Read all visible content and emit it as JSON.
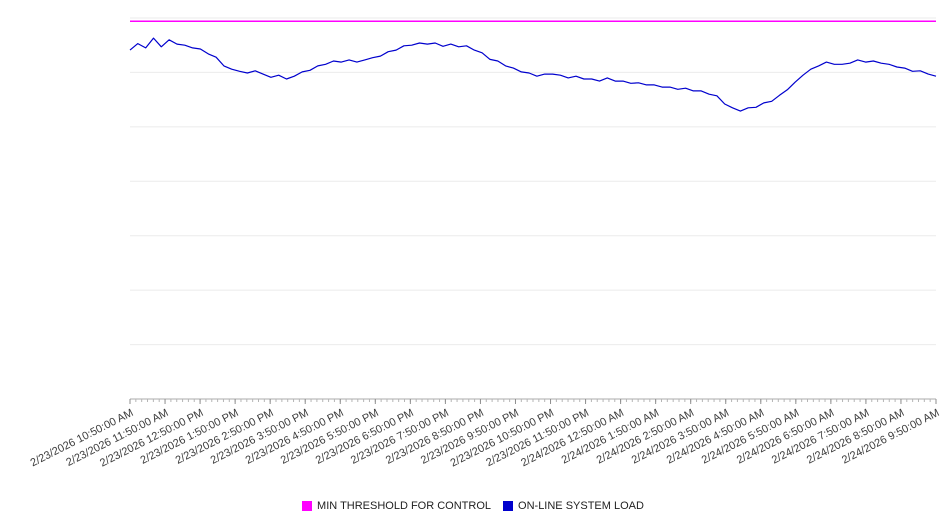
{
  "chart_data": {
    "type": "line",
    "title": "",
    "xlabel": "",
    "ylabel": "",
    "ylim": [
      0,
      7
    ],
    "grid_divisions": 7,
    "grid": true,
    "legend_position": "bottom",
    "minor_ticks_per_interval": 6,
    "x_labels": [
      "2/23/2026 10:50:00 AM",
      "2/23/2026 11:50:00 AM",
      "2/23/2026 12:50:00 PM",
      "2/23/2026 1:50:00 PM",
      "2/23/2026 2:50:00 PM",
      "2/23/2026 3:50:00 PM",
      "2/23/2026 4:50:00 PM",
      "2/23/2026 5:50:00 PM",
      "2/23/2026 6:50:00 PM",
      "2/23/2026 7:50:00 PM",
      "2/23/2026 8:50:00 PM",
      "2/23/2026 9:50:00 PM",
      "2/23/2026 10:50:00 PM",
      "2/23/2026 11:50:00 PM",
      "2/24/2026 12:50:00 AM",
      "2/24/2026 1:50:00 AM",
      "2/24/2026 2:50:00 AM",
      "2/24/2026 3:50:00 AM",
      "2/24/2026 4:50:00 AM",
      "2/24/2026 5:50:00 AM",
      "2/24/2026 6:50:00 AM",
      "2/24/2026 7:50:00 AM",
      "2/24/2026 8:50:00 AM",
      "2/24/2026 9:50:00 AM"
    ],
    "series": [
      {
        "name": "MIN THRESHOLD FOR CONTROL",
        "type": "threshold",
        "color": "#ff00ff",
        "value": 6.94
      },
      {
        "name": "ON-LINE SYSTEM LOAD",
        "type": "line",
        "color": "#0000cd",
        "values": [
          6.41,
          6.53,
          6.45,
          6.63,
          6.47,
          6.6,
          6.52,
          6.5,
          6.45,
          6.43,
          6.34,
          6.28,
          6.12,
          6.06,
          6.02,
          5.99,
          6.03,
          5.97,
          5.91,
          5.95,
          5.88,
          5.93,
          6.01,
          6.04,
          6.12,
          6.15,
          6.21,
          6.19,
          6.23,
          6.19,
          6.23,
          6.27,
          6.3,
          6.38,
          6.41,
          6.49,
          6.5,
          6.54,
          6.52,
          6.54,
          6.48,
          6.52,
          6.47,
          6.49,
          6.41,
          6.36,
          6.24,
          6.21,
          6.12,
          6.08,
          6.01,
          5.99,
          5.93,
          5.97,
          5.97,
          5.95,
          5.9,
          5.93,
          5.88,
          5.88,
          5.84,
          5.9,
          5.84,
          5.84,
          5.8,
          5.81,
          5.77,
          5.77,
          5.73,
          5.73,
          5.69,
          5.71,
          5.66,
          5.66,
          5.6,
          5.57,
          5.42,
          5.35,
          5.29,
          5.35,
          5.36,
          5.44,
          5.47,
          5.58,
          5.68,
          5.82,
          5.95,
          6.06,
          6.12,
          6.19,
          6.15,
          6.15,
          6.17,
          6.23,
          6.19,
          6.21,
          6.17,
          6.15,
          6.1,
          6.08,
          6.02,
          6.03,
          5.97,
          5.93
        ]
      }
    ]
  },
  "legend": {
    "items": [
      {
        "label": "MIN THRESHOLD FOR CONTROL",
        "color": "#ff00ff"
      },
      {
        "label": "ON-LINE SYSTEM LOAD",
        "color": "#0000cd"
      }
    ]
  }
}
